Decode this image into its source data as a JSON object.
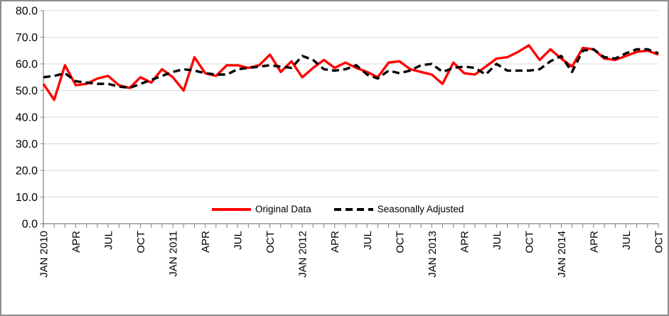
{
  "chart_data": {
    "type": "line",
    "title": "",
    "categories": [
      "JAN 2010",
      "",
      "",
      "APR",
      "",
      "",
      "JUL",
      "",
      "",
      "OCT",
      "",
      "",
      "JAN 2011",
      "",
      "",
      "APR",
      "",
      "",
      "JUL",
      "",
      "",
      "OCT",
      "",
      "",
      "JAN 2012",
      "",
      "",
      "APR",
      "",
      "",
      "JUL",
      "",
      "",
      "OCT",
      "",
      "",
      "JAN 2013",
      "",
      "",
      "APR",
      "",
      "",
      "JUL",
      "",
      "",
      "OCT",
      "",
      "",
      "JAN 2014",
      "",
      "",
      "APR",
      "",
      "",
      "JUL",
      "",
      "",
      "OCT"
    ],
    "series": [
      {
        "name": "Original Data",
        "color": "#FF0000",
        "style": "solid",
        "values": [
          52.5,
          46.5,
          59.5,
          52,
          52.5,
          54.5,
          55.5,
          52,
          51,
          55,
          53,
          58,
          55,
          50,
          62.5,
          56.5,
          55.5,
          59.5,
          59.5,
          58.5,
          59.5,
          63.5,
          57,
          61,
          55,
          58.5,
          61.5,
          58.5,
          60.5,
          58.5,
          57,
          55,
          60.5,
          61,
          58,
          57,
          56,
          52.5,
          60.5,
          56.5,
          56,
          59,
          62,
          62.5,
          64.5,
          67,
          61.5,
          65.5,
          62,
          59,
          66,
          65.5,
          62,
          61.5,
          63,
          64.5,
          65,
          63.5
        ]
      },
      {
        "name": "Seasonally Adjusted",
        "color": "#000000",
        "style": "dashed",
        "values": [
          55,
          55.5,
          56.5,
          53.5,
          53,
          52.5,
          52.5,
          51.5,
          51,
          52.5,
          54,
          55.5,
          57,
          58,
          57.5,
          56.5,
          56,
          56,
          58,
          58.5,
          59,
          59.5,
          59,
          58.5,
          63,
          61.5,
          58,
          57.5,
          58,
          59.5,
          56,
          54.5,
          57.5,
          56.5,
          57.5,
          59.5,
          60,
          57,
          58.5,
          59,
          58.5,
          56,
          60,
          57.5,
          57.5,
          57.5,
          58,
          61,
          63,
          57,
          65,
          65.5,
          62.5,
          62,
          64,
          65.5,
          65.5,
          64
        ]
      }
    ],
    "ylim": [
      0,
      80
    ],
    "y_tick_labels": [
      "0.0",
      "10.0",
      "20.0",
      "30.0",
      "40.0",
      "50.0",
      "60.0",
      "70.0",
      "80.0"
    ],
    "grid": true,
    "legend_position": "bottom-center-inside"
  },
  "colors": {
    "gridline": "#D9D9D9",
    "axis": "#808080",
    "text": "#000000",
    "background": "#FFFFFF",
    "frame_border": "#8C8C8C"
  }
}
